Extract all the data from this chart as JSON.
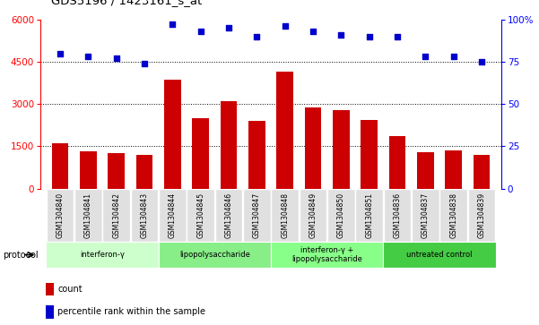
{
  "title": "GDS5196 / 1423161_s_at",
  "samples": [
    "GSM1304840",
    "GSM1304841",
    "GSM1304842",
    "GSM1304843",
    "GSM1304844",
    "GSM1304845",
    "GSM1304846",
    "GSM1304847",
    "GSM1304848",
    "GSM1304849",
    "GSM1304850",
    "GSM1304851",
    "GSM1304836",
    "GSM1304837",
    "GSM1304838",
    "GSM1304839"
  ],
  "counts": [
    1600,
    1320,
    1250,
    1200,
    3850,
    2500,
    3100,
    2400,
    4150,
    2870,
    2780,
    2430,
    1850,
    1280,
    1360,
    1200
  ],
  "percentiles": [
    80,
    78,
    77,
    74,
    97,
    93,
    95,
    90,
    96,
    93,
    91,
    90,
    90,
    78,
    78,
    75
  ],
  "groups": [
    {
      "label": "interferon-γ",
      "start": 0,
      "end": 4,
      "color": "#ccffcc"
    },
    {
      "label": "lipopolysaccharide",
      "start": 4,
      "end": 8,
      "color": "#88ee88"
    },
    {
      "label": "interferon-γ +\nlipopolysaccharide",
      "start": 8,
      "end": 12,
      "color": "#88ff88"
    },
    {
      "label": "untreated control",
      "start": 12,
      "end": 16,
      "color": "#44cc44"
    }
  ],
  "bar_color": "#cc0000",
  "dot_color": "#0000cc",
  "ylim_left": [
    0,
    6000
  ],
  "ylim_right": [
    0,
    100
  ],
  "yticks_left": [
    0,
    1500,
    3000,
    4500,
    6000
  ],
  "yticks_right": [
    0,
    25,
    50,
    75,
    100
  ],
  "grid_values": [
    1500,
    3000,
    4500
  ],
  "bg_color": "#ffffff",
  "plot_bg": "#ffffff"
}
